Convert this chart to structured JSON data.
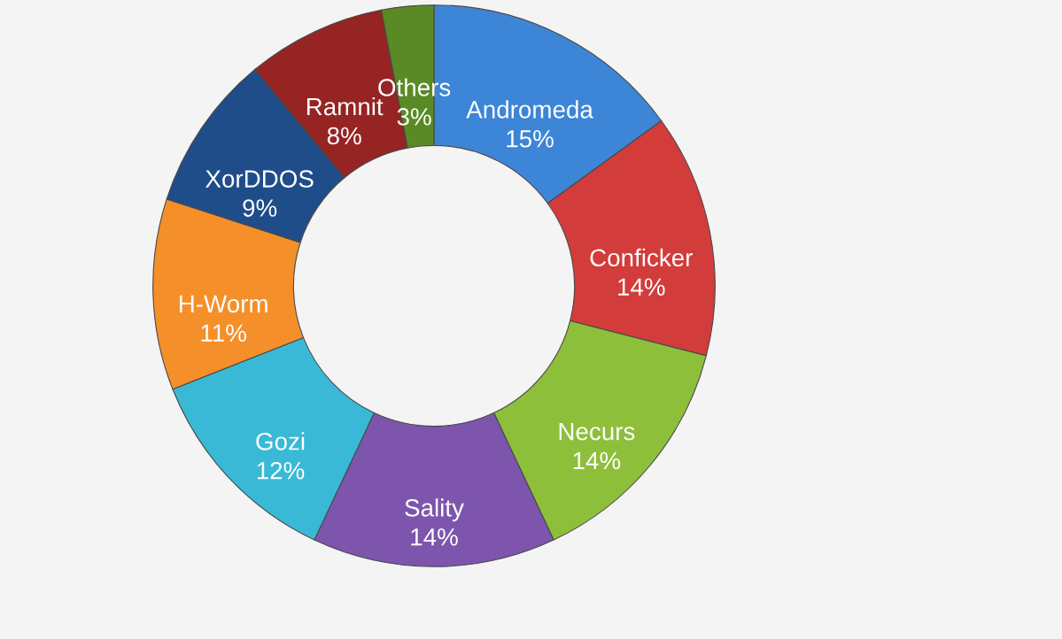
{
  "chart_data": {
    "type": "donut",
    "categories": [
      "Andromeda",
      "Conficker",
      "Necurs",
      "Sality",
      "Gozi",
      "H-Worm",
      "XorDDOS",
      "Ramnit",
      "Others"
    ],
    "values": [
      15,
      14,
      14,
      14,
      12,
      11,
      9,
      8,
      3
    ],
    "value_labels": [
      "15%",
      "14%",
      "14%",
      "14%",
      "12%",
      "11%",
      "9%",
      "8%",
      "3%"
    ],
    "colors": [
      "#3d85d6",
      "#d23c3a",
      "#8dbf3b",
      "#7d55ad",
      "#39b9d6",
      "#f58f2a",
      "#1f4d89",
      "#952423",
      "#5a8a25"
    ]
  }
}
